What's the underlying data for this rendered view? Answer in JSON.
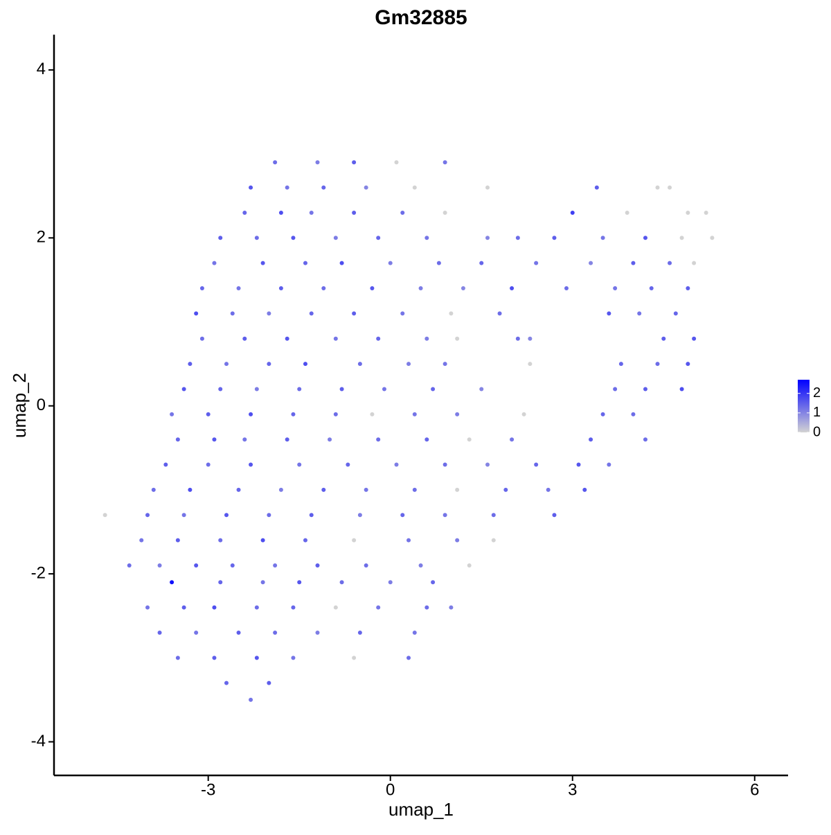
{
  "chart_data": {
    "type": "scatter",
    "title": "Gm32885",
    "xlabel": "umap_1",
    "ylabel": "umap_2",
    "xlim": [
      -5.54,
      6.55
    ],
    "ylim": [
      -4.4,
      4.42
    ],
    "xticks": [
      -3,
      0,
      3,
      6
    ],
    "yticks": [
      -4,
      -2,
      0,
      2,
      4
    ],
    "x": [
      -1.9,
      -1.2,
      -0.6,
      0.1,
      0.9,
      -2.3,
      -1.7,
      -1.1,
      -0.4,
      0.4,
      1.6,
      3.4,
      4.4,
      4.6,
      -2.4,
      -1.8,
      -1.3,
      -0.6,
      0.2,
      0.9,
      3.0,
      3.9,
      4.9,
      5.2,
      -2.8,
      -2.2,
      -1.6,
      -0.9,
      -0.2,
      0.6,
      1.6,
      2.1,
      2.7,
      3.5,
      4.2,
      4.8,
      5.3,
      -2.9,
      -2.1,
      -1.4,
      -0.8,
      0,
      0.8,
      1.5,
      2.4,
      3.3,
      4.0,
      4.6,
      5.0,
      -3.1,
      -2.5,
      -1.8,
      -1.1,
      -0.3,
      0.5,
      1.2,
      2.0,
      2.9,
      3.7,
      4.3,
      4.9,
      -3.2,
      -2.6,
      -2.0,
      -1.3,
      -0.6,
      0.2,
      1.0,
      1.8,
      3.6,
      4.1,
      4.7,
      -3.1,
      -2.4,
      -1.7,
      -0.9,
      -0.2,
      0.6,
      1.1,
      2.1,
      2.3,
      4.5,
      5.0,
      -3.3,
      -2.7,
      -2.0,
      -1.4,
      -0.5,
      0.3,
      0.9,
      2.3,
      3.8,
      4.4,
      4.9,
      -3.4,
      -2.8,
      -2.2,
      -1.5,
      -0.8,
      -0.1,
      0.7,
      1.5,
      3.7,
      4.2,
      4.8,
      -3.6,
      -3.0,
      -2.3,
      -1.6,
      -0.9,
      -0.3,
      0.4,
      1.1,
      2.2,
      3.5,
      4.0,
      -3.5,
      -2.9,
      -2.4,
      -1.7,
      -1.0,
      -0.2,
      0.6,
      1.3,
      2.0,
      3.3,
      4.2,
      -3.7,
      -3.0,
      -2.3,
      -1.5,
      -0.7,
      0.1,
      0.9,
      1.6,
      2.4,
      3.1,
      3.6,
      -3.9,
      -3.3,
      -2.5,
      -1.8,
      -1.1,
      -0.4,
      0.4,
      1.1,
      1.9,
      2.6,
      3.2,
      -4.7,
      -4.0,
      -3.4,
      -2.7,
      -2.0,
      -1.3,
      -0.5,
      0.2,
      0.9,
      1.7,
      2.7,
      -4.1,
      -3.5,
      -2.8,
      -2.1,
      -1.4,
      -0.6,
      0.3,
      1.1,
      1.7,
      -4.3,
      -3.8,
      -3.2,
      -2.6,
      -1.9,
      -1.2,
      -0.4,
      0.5,
      1.3,
      -3.6,
      -2.8,
      -2.1,
      -1.5,
      -0.8,
      0.0,
      0.7,
      -4.0,
      -3.4,
      -2.9,
      -2.2,
      -1.6,
      -0.9,
      -0.2,
      0.6,
      1.0,
      -3.8,
      -3.2,
      -2.5,
      -1.9,
      -1.2,
      -0.5,
      0.4,
      -3.5,
      -2.9,
      -2.2,
      -1.6,
      -0.6,
      0.3,
      -2.7,
      -2.0,
      -2.3
    ],
    "y": [
      2.9,
      2.9,
      2.9,
      2.9,
      2.9,
      2.6,
      2.6,
      2.6,
      2.6,
      2.6,
      2.6,
      2.6,
      2.6,
      2.6,
      2.3,
      2.3,
      2.3,
      2.3,
      2.3,
      2.3,
      2.3,
      2.3,
      2.3,
      2.3,
      2.0,
      2.0,
      2.0,
      2.0,
      2.0,
      2.0,
      2.0,
      2.0,
      2.0,
      2.0,
      2.0,
      2.0,
      2.0,
      1.7,
      1.7,
      1.7,
      1.7,
      1.7,
      1.7,
      1.7,
      1.7,
      1.7,
      1.7,
      1.7,
      1.7,
      1.4,
      1.4,
      1.4,
      1.4,
      1.4,
      1.4,
      1.4,
      1.4,
      1.4,
      1.4,
      1.4,
      1.4,
      1.1,
      1.1,
      1.1,
      1.1,
      1.1,
      1.1,
      1.1,
      1.1,
      1.1,
      1.1,
      1.1,
      0.8,
      0.8,
      0.8,
      0.8,
      0.8,
      0.8,
      0.8,
      0.8,
      0.8,
      0.8,
      0.8,
      0.5,
      0.5,
      0.5,
      0.5,
      0.5,
      0.5,
      0.5,
      0.5,
      0.5,
      0.5,
      0.5,
      0.2,
      0.2,
      0.2,
      0.2,
      0.2,
      0.2,
      0.2,
      0.2,
      0.2,
      0.2,
      0.2,
      -0.1,
      -0.1,
      -0.1,
      -0.1,
      -0.1,
      -0.1,
      -0.1,
      -0.1,
      -0.1,
      -0.1,
      -0.1,
      -0.4,
      -0.4,
      -0.4,
      -0.4,
      -0.4,
      -0.4,
      -0.4,
      -0.4,
      -0.4,
      -0.4,
      -0.4,
      -0.7,
      -0.7,
      -0.7,
      -0.7,
      -0.7,
      -0.7,
      -0.7,
      -0.7,
      -0.7,
      -0.7,
      -0.7,
      -1.0,
      -1.0,
      -1.0,
      -1.0,
      -1.0,
      -1.0,
      -1.0,
      -1.0,
      -1.0,
      -1.0,
      -1.0,
      -1.3,
      -1.3,
      -1.3,
      -1.3,
      -1.3,
      -1.3,
      -1.3,
      -1.3,
      -1.3,
      -1.3,
      -1.3,
      -1.6,
      -1.6,
      -1.6,
      -1.6,
      -1.6,
      -1.6,
      -1.6,
      -1.6,
      -1.6,
      -1.9,
      -1.9,
      -1.9,
      -1.9,
      -1.9,
      -1.9,
      -1.9,
      -1.9,
      -1.9,
      -2.1,
      -2.1,
      -2.1,
      -2.1,
      -2.1,
      -2.1,
      -2.1,
      -2.4,
      -2.4,
      -2.4,
      -2.4,
      -2.4,
      -2.4,
      -2.4,
      -2.4,
      -2.4,
      -2.7,
      -2.7,
      -2.7,
      -2.7,
      -2.7,
      -2.7,
      -2.7,
      -3.0,
      -3.0,
      -3.0,
      -3.0,
      -3.0,
      -3.0,
      -3.3,
      -3.3,
      -3.5
    ],
    "values": [
      1.3,
      1.1,
      1.5,
      0,
      1.2,
      1.6,
      1.2,
      1.4,
      1.0,
      0,
      0,
      1.5,
      0,
      0,
      1.4,
      1.7,
      1.2,
      1.5,
      1.3,
      0,
      1.9,
      0,
      0,
      0,
      1.5,
      1.3,
      1.6,
      1.1,
      1.4,
      1.2,
      1.0,
      1.3,
      1.5,
      1.2,
      1.6,
      0,
      0,
      1.2,
      1.6,
      1.4,
      1.7,
      1.1,
      1.3,
      1.4,
      1.2,
      1.0,
      1.5,
      1.3,
      0,
      1.4,
      1.2,
      1.5,
      1.3,
      1.6,
      1.1,
      1.0,
      1.7,
      1.3,
      1.2,
      1.4,
      1.5,
      1.7,
      1.3,
      1.1,
      1.4,
      1.5,
      1.2,
      0,
      1.3,
      1.6,
      1.2,
      1.4,
      1.3,
      1.5,
      1.6,
      1.2,
      1.4,
      1.1,
      0,
      1.3,
      1.0,
      1.5,
      1.6,
      1.5,
      1.2,
      1.4,
      1.7,
      1.3,
      1.1,
      1.2,
      0,
      1.4,
      1.3,
      1.6,
      1.6,
      1.4,
      1.1,
      1.3,
      1.5,
      1.2,
      1.4,
      1.0,
      1.3,
      1.5,
      1.7,
      1.2,
      1.5,
      1.7,
      1.4,
      1.3,
      0,
      1.2,
      1.1,
      0,
      1.4,
      1.3,
      1.4,
      1.6,
      1.2,
      1.5,
      1.1,
      1.3,
      1.4,
      0,
      1.2,
      1.5,
      1.3,
      1.5,
      1.3,
      1.6,
      1.2,
      1.4,
      1.1,
      1.3,
      1.0,
      1.4,
      1.6,
      1.2,
      1.3,
      1.7,
      1.4,
      1.1,
      1.5,
      1.2,
      1.3,
      0,
      1.4,
      1.2,
      1.6,
      0,
      1.4,
      1.2,
      1.6,
      1.3,
      1.5,
      1.1,
      1.4,
      1.2,
      1.3,
      1.5,
      1.2,
      1.5,
      1.3,
      1.7,
      1.4,
      0,
      1.2,
      1.1,
      0,
      1.3,
      1.1,
      1.6,
      1.4,
      1.2,
      1.5,
      1.3,
      1.1,
      0,
      2.5,
      1.4,
      1.2,
      1.6,
      1.3,
      1.1,
      1.4,
      1.2,
      1.5,
      1.7,
      1.3,
      1.4,
      0,
      1.2,
      1.3,
      1.1,
      1.4,
      1.2,
      1.5,
      1.3,
      1.1,
      1.4,
      1.2,
      1.3,
      1.5,
      1.6,
      1.2,
      0,
      1.3,
      1.4,
      1.5,
      1.2
    ],
    "colorbar": {
      "low": "#d3d3d3",
      "high": "#0000ff",
      "range": [
        0,
        2.7
      ],
      "ticks": [
        0,
        1,
        2
      ]
    }
  }
}
